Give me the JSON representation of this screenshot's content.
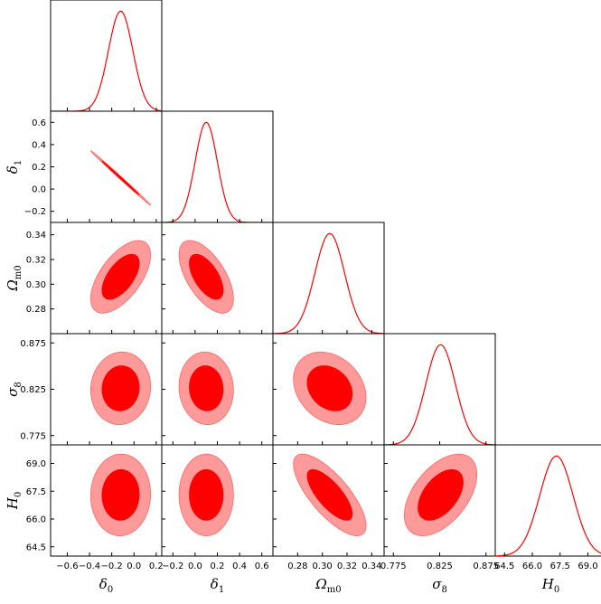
{
  "chart_data": {
    "type": "corner",
    "parameters": [
      {
        "key": "delta0",
        "label": "δ",
        "sub": "0",
        "range": [
          -0.75,
          0.25
        ],
        "mean": -0.12,
        "sigma": 0.11,
        "ticks": [
          -0.6,
          -0.4,
          -0.2,
          0.0,
          0.2
        ],
        "ticklabels": [
          "−0.6",
          "−0.4",
          "−0.2",
          "0.0",
          "0.2"
        ]
      },
      {
        "key": "delta1",
        "label": "δ",
        "sub": "1",
        "range": [
          -0.3,
          0.7
        ],
        "mean": 0.1,
        "sigma": 0.1,
        "ticks": [
          -0.2,
          0.0,
          0.2,
          0.4,
          0.6
        ],
        "ticklabels": [
          "−0.2",
          "0.0",
          "0.2",
          "0.4",
          "0.6"
        ]
      },
      {
        "key": "omegam0",
        "label": "Ω",
        "sub": "m0",
        "range": [
          0.26,
          0.35
        ],
        "mean": 0.306,
        "sigma": 0.012,
        "ticks": [
          0.28,
          0.3,
          0.32,
          0.34
        ],
        "ticklabels": [
          "0.28",
          "0.30",
          "0.32",
          "0.34"
        ]
      },
      {
        "key": "sigma8",
        "label": "σ",
        "sub": "8",
        "range": [
          0.765,
          0.885
        ],
        "mean": 0.826,
        "sigma": 0.016,
        "ticks": [
          0.775,
          0.825,
          0.875
        ],
        "ticklabels": [
          "0.775",
          "0.825",
          "0.875"
        ]
      },
      {
        "key": "H0",
        "label": "H",
        "sub": "0",
        "range": [
          64.0,
          70.0
        ],
        "mean": 67.3,
        "sigma": 0.9,
        "ticks": [
          64.5,
          66.0,
          67.5,
          69.0
        ],
        "ticklabels": [
          "64.5",
          "66.0",
          "67.5",
          "69.0"
        ]
      }
    ],
    "contours": [
      {
        "x": "delta0",
        "y": "delta1",
        "rho": -0.998
      },
      {
        "x": "delta0",
        "y": "omegam0",
        "rho": 0.6
      },
      {
        "x": "delta1",
        "y": "omegam0",
        "rho": -0.6
      },
      {
        "x": "delta0",
        "y": "sigma8",
        "rho": 0.05
      },
      {
        "x": "delta1",
        "y": "sigma8",
        "rho": -0.05
      },
      {
        "x": "omegam0",
        "y": "sigma8",
        "rho": -0.25
      },
      {
        "x": "delta0",
        "y": "H0",
        "rho": 0.02
      },
      {
        "x": "delta1",
        "y": "H0",
        "rho": 0.0
      },
      {
        "x": "omegam0",
        "y": "H0",
        "rho": -0.75
      },
      {
        "x": "sigma8",
        "y": "H0",
        "rho": 0.5
      }
    ],
    "levels": [
      "68%",
      "95%"
    ],
    "colors": {
      "line": "#ff0000",
      "inner": "#ff0000",
      "outer": "#ff9a9a",
      "outer_edge": "#ff6666"
    },
    "grid": false
  }
}
